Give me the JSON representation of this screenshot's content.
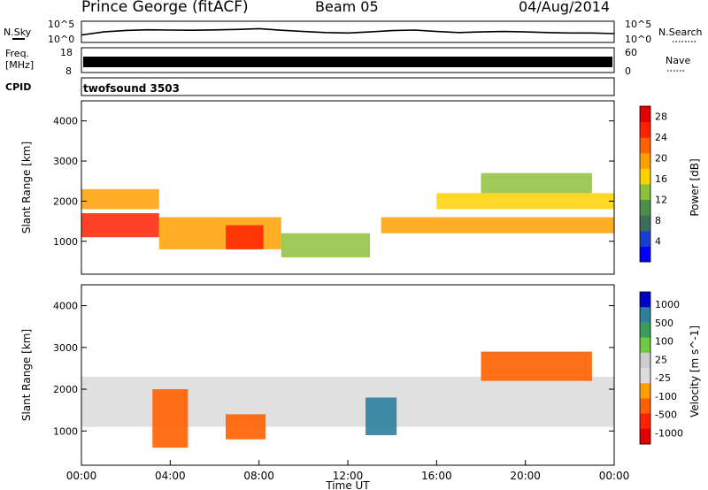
{
  "header": {
    "station": "Prince George (fitACF)",
    "beam": "Beam 05",
    "date": "04/Aug/2014"
  },
  "strip_labels": {
    "nsky": "N.Sky",
    "nsky_ticks": [
      "10^5",
      "10^0"
    ],
    "nsearch": "N.Search",
    "freq": "Freq.",
    "freq_unit": "[MHz]",
    "freq_ticks": [
      "18",
      "8"
    ],
    "nave": "Nave",
    "nave_ticks": [
      "60",
      "0"
    ],
    "cpid": "CPID",
    "cpid_value": "twofsound 3503"
  },
  "colors": {
    "power_scale": [
      "#0000ff",
      "#1a3fd0",
      "#3d6e5c",
      "#4c8f4c",
      "#8cc13c",
      "#ffd000",
      "#ffa000",
      "#ff6000",
      "#ff2000",
      "#e00000"
    ],
    "velocity_scale": [
      "#0000c8",
      "#2c7fa0",
      "#3a9e5a",
      "#6fca43",
      "#cccccc",
      "#dddddd",
      "#ffa000",
      "#ff6000",
      "#ff2000",
      "#e00000"
    ]
  },
  "chart_data": [
    {
      "type": "line",
      "name": "N.Sky / N.Search noise",
      "x": [
        0,
        1,
        2,
        3,
        4,
        5,
        6,
        7,
        8,
        9,
        10,
        11,
        12,
        13,
        14,
        15,
        16,
        17,
        18,
        19,
        20,
        21,
        22,
        23,
        24
      ],
      "y": [
        40,
        300,
        800,
        1200,
        1000,
        900,
        1100,
        1500,
        2500,
        900,
        400,
        200,
        150,
        300,
        700,
        1000,
        400,
        200,
        300,
        400,
        300,
        200,
        150,
        150,
        100
      ],
      "xlim": [
        0,
        24
      ],
      "ylim": [
        1,
        100000
      ],
      "yscale": "log",
      "ytick_labels": [
        "10^5",
        "10^0"
      ]
    },
    {
      "type": "area",
      "name": "Freq. / Nave",
      "x": [
        0,
        24
      ],
      "y": [
        11,
        11
      ],
      "ylim": [
        8,
        18
      ],
      "ytick_labels": [
        "18",
        "8"
      ],
      "right_tick_labels": [
        "60",
        "0"
      ]
    },
    {
      "type": "heatmap",
      "name": "Power",
      "xlabel": "",
      "ylabel": "Slant Range [km]",
      "xlim": [
        0,
        24
      ],
      "ylim": [
        180,
        4500
      ],
      "yticks": [
        1000,
        2000,
        3000,
        4000
      ],
      "colorbar_label": "Power [dB]",
      "colorbar_ticks": [
        4,
        8,
        12,
        16,
        20,
        24,
        28
      ],
      "colorbar_range": [
        0,
        30
      ],
      "features": [
        {
          "t0": 0,
          "t1": 3.5,
          "r0": 1100,
          "r1": 1700,
          "level": 24
        },
        {
          "t0": 0,
          "t1": 3.5,
          "r0": 1800,
          "r1": 2300,
          "level": 18
        },
        {
          "t0": 3.5,
          "t1": 9,
          "r0": 800,
          "r1": 1600,
          "level": 20
        },
        {
          "t0": 6.5,
          "t1": 8.2,
          "r0": 800,
          "r1": 1400,
          "level": 26
        },
        {
          "t0": 9,
          "t1": 13,
          "r0": 600,
          "r1": 1200,
          "level": 14
        },
        {
          "t0": 13.5,
          "t1": 24,
          "r0": 1200,
          "r1": 1600,
          "level": 20
        },
        {
          "t0": 16,
          "t1": 24,
          "r0": 1800,
          "r1": 2200,
          "level": 16
        },
        {
          "t0": 18,
          "t1": 23,
          "r0": 2200,
          "r1": 2700,
          "level": 14
        }
      ]
    },
    {
      "type": "heatmap",
      "name": "Velocity",
      "xlabel": "Time UT",
      "ylabel": "Slant Range [km]",
      "xlim": [
        0,
        24
      ],
      "ylim": [
        180,
        4500
      ],
      "yticks": [
        1000,
        2000,
        3000,
        4000
      ],
      "xtick_labels": [
        "00:00",
        "04:00",
        "08:00",
        "12:00",
        "16:00",
        "20:00",
        "00:00"
      ],
      "xticks": [
        0,
        4,
        8,
        12,
        16,
        20,
        24
      ],
      "colorbar_label": "Velocity [m s^-1]",
      "colorbar_ticks": [
        "1000",
        "500",
        "100",
        "25",
        "-25",
        "-100",
        "-500",
        "-1000"
      ],
      "features": [
        {
          "t0": 0,
          "t1": 24,
          "r0": 1100,
          "r1": 2300,
          "level": "ground"
        },
        {
          "t0": 3.2,
          "t1": 4.8,
          "r0": 600,
          "r1": 2000,
          "level": "-500"
        },
        {
          "t0": 6.5,
          "t1": 8.3,
          "r0": 800,
          "r1": 1400,
          "level": "-500"
        },
        {
          "t0": 12.8,
          "t1": 14.2,
          "r0": 900,
          "r1": 1800,
          "level": "500"
        },
        {
          "t0": 18,
          "t1": 23,
          "r0": 2200,
          "r1": 2900,
          "level": "-500"
        }
      ]
    }
  ]
}
